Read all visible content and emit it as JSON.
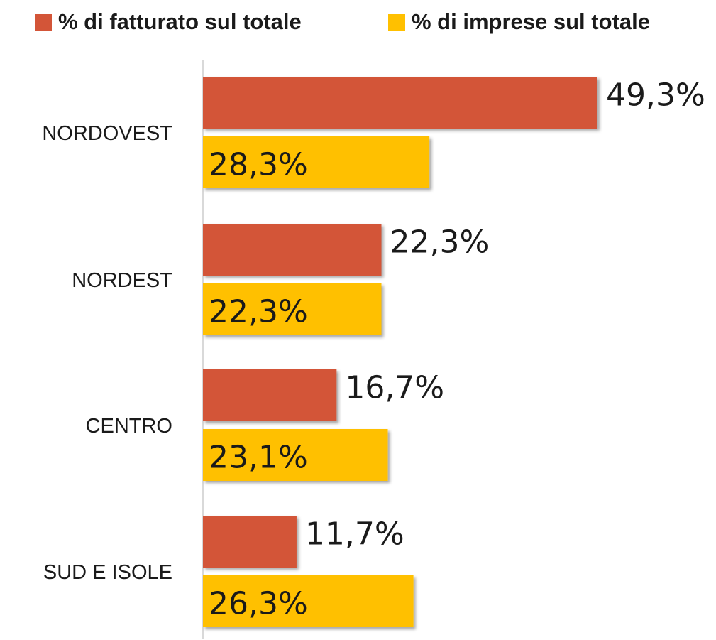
{
  "chart_data": {
    "type": "bar",
    "orientation": "horizontal",
    "categories": [
      "NORDOVEST",
      "NORDEST",
      "CENTRO",
      "SUD E ISOLE"
    ],
    "series": [
      {
        "name": "% di fatturato sul totale",
        "color": "#d35538",
        "values": [
          49.3,
          22.3,
          16.7,
          11.7
        ],
        "value_labels": [
          "49,3%",
          "22,3%",
          "16,7%",
          "11,7%"
        ]
      },
      {
        "name": "% di imprese sul totale",
        "color": "#ffc000",
        "values": [
          28.3,
          22.3,
          23.1,
          26.3
        ],
        "value_labels": [
          "28,3%",
          "22,3%",
          "23,1%",
          "26,3%"
        ]
      }
    ],
    "legend": "top"
  }
}
